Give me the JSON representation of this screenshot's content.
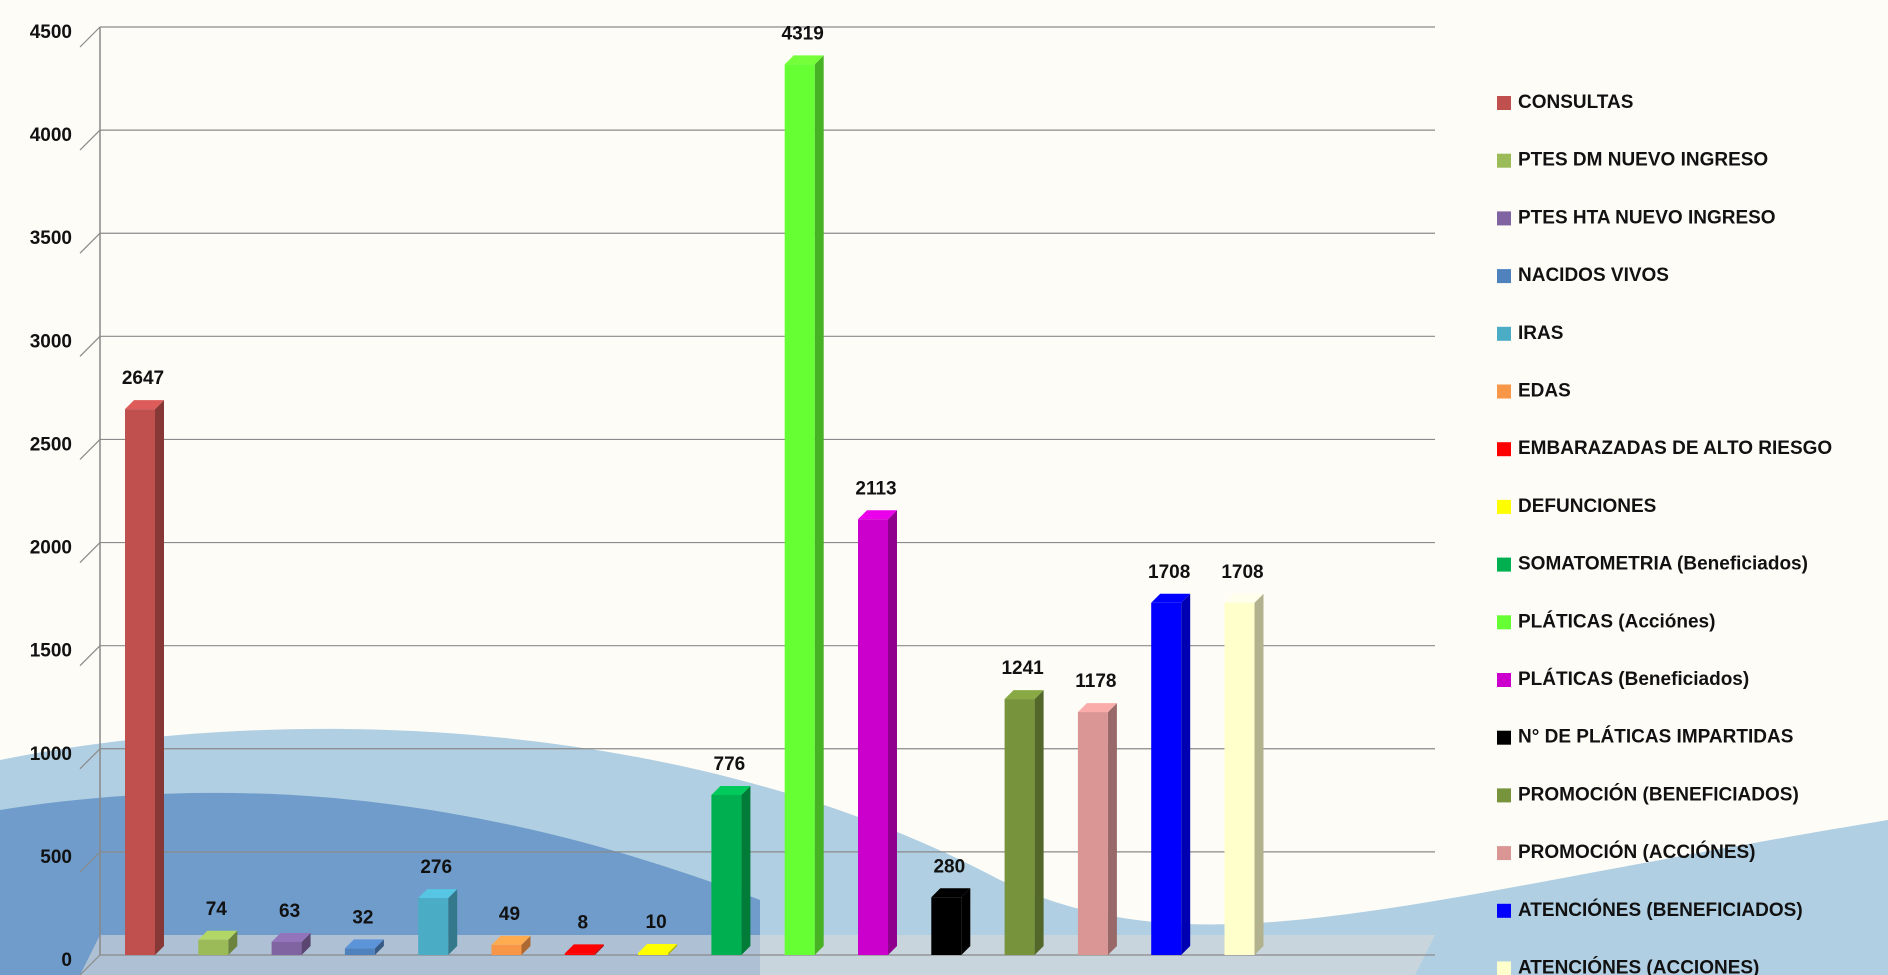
{
  "chart_data": {
    "type": "bar",
    "categories": [
      "CONSULTAS",
      "PTES DM NUEVO INGRESO",
      "PTES HTA NUEVO INGRESO",
      "NACIDOS VIVOS",
      "IRAS",
      "EDAS",
      "EMBARAZADAS DE ALTO RIESGO",
      "DEFUNCIONES",
      "SOMATOMETRIA (Beneficiados)",
      "PLÁTICAS (Acciónes)",
      "PLÁTICAS (Beneficiados)",
      "N° DE PLÁTICAS IMPARTIDAS",
      "PROMOCIÓN (BENEFICIADOS)",
      "PROMOCIÓN (ACCIÓNES)",
      "ATENCIÓNES (BENEFICIADOS)",
      "ATENCIÓNES (ACCIONES)"
    ],
    "values": [
      2647,
      74,
      63,
      32,
      276,
      49,
      8,
      10,
      776,
      4319,
      2113,
      280,
      1241,
      1178,
      1708,
      1708
    ],
    "colors": [
      "#c0504d",
      "#9bbb59",
      "#8064a2",
      "#4f81bd",
      "#4bacc6",
      "#f79646",
      "#ff0000",
      "#ffff00",
      "#00b050",
      "#66ff33",
      "#cc00cc",
      "#000000",
      "#77933c",
      "#d99694",
      "#0000ff",
      "#ffffcc"
    ],
    "ylim": [
      0,
      4500
    ],
    "yticks": [
      0,
      500,
      1000,
      1500,
      2000,
      2500,
      3000,
      3500,
      4000,
      4500
    ],
    "grid": true,
    "legend": "right"
  }
}
